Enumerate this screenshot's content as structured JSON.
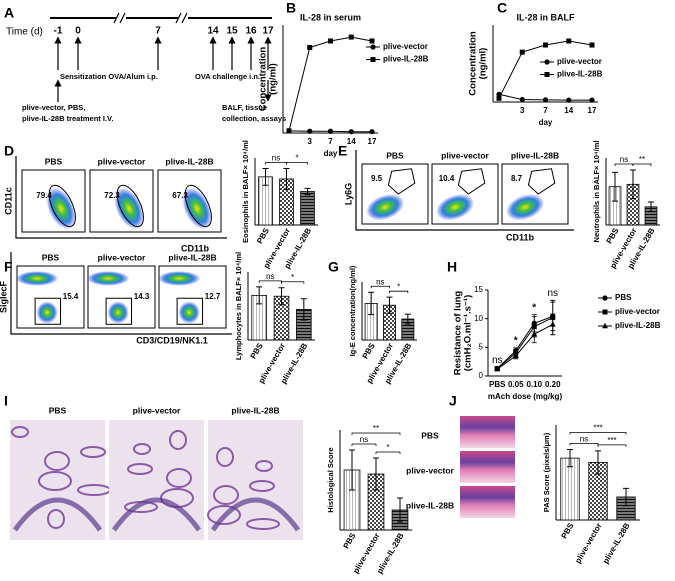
{
  "panel_letters": [
    "A",
    "B",
    "C",
    "D",
    "E",
    "F",
    "G",
    "H",
    "I",
    "J"
  ],
  "timeline": {
    "axis_label": "Time (d)",
    "days": [
      -1,
      0,
      7,
      14,
      15,
      16,
      17
    ],
    "notes": [
      "Sensitization OVA/Alum i.p.",
      "OVA challenge i.n.",
      "plive-vector, PBS,",
      "plive-IL-28B treatment I.V.",
      "BALF, tissue",
      "collection, assays"
    ]
  },
  "flow": [
    {
      "x_label": "CD11b",
      "y_label": "CD11c",
      "plots": [
        {
          "title": "PBS",
          "gate": 79.4
        },
        {
          "title": "plive-vector",
          "gate": 72.3
        },
        {
          "title": "plive-IL-28B",
          "gate": 67.3
        }
      ]
    },
    {
      "x_label": "CD11b",
      "y_label": "Ly6G",
      "plots": [
        {
          "title": "PBS",
          "gate": 9.5
        },
        {
          "title": "plive-vector",
          "gate": 10.4
        },
        {
          "title": "plive-IL-28B",
          "gate": 8.7
        }
      ]
    },
    {
      "x_label": "CD3/CD19/NK1.1",
      "y_label": "SiglecF",
      "plots": [
        {
          "title": "PBS",
          "gate": 15.4
        },
        {
          "title": "plive-vector",
          "gate": 14.3
        },
        {
          "title": "plive-IL-28B",
          "gate": 12.7
        }
      ]
    }
  ],
  "histology": {
    "titles": [
      "PBS",
      "plive-vector",
      "plive-IL-28B"
    ]
  },
  "pas": {
    "titles": [
      "PBS",
      "plive-vector",
      "plive-IL-28B"
    ]
  },
  "chart_data": [
    {
      "type": "line",
      "title": "IL-28 in serum",
      "ylabel": [
        "Concentration",
        "(ng/ml)"
      ],
      "xlabel": "day",
      "categories": [
        null,
        "3",
        "7",
        "14",
        "17"
      ],
      "ylim": [
        0,
        25
      ],
      "series": [
        {
          "name": "plive-vector",
          "color": "#000000",
          "marker": "circle",
          "values": [
            0.5,
            0.4,
            0.4,
            0.3,
            0.3
          ]
        },
        {
          "name": "plive-IL-28B",
          "color": "#000000",
          "marker": "square",
          "values": [
            0.5,
            19.8,
            21.3,
            22.2,
            21.3
          ]
        }
      ]
    },
    {
      "type": "line",
      "title": "IL-28 in BALF",
      "ylabel": [
        "Concentration",
        "(ng/ml)"
      ],
      "xlabel": "day",
      "categories": [
        null,
        "3",
        "7",
        "14",
        "17"
      ],
      "ylim": [
        0,
        25
      ],
      "series": [
        {
          "name": "plive-vector",
          "color": "#000000",
          "marker": "circle",
          "values": [
            2.5,
            0.8,
            0.7,
            0.6,
            0.6
          ]
        },
        {
          "name": "plive-IL-28B",
          "color": "#000000",
          "marker": "square",
          "values": [
            1.2,
            16.2,
            18.5,
            19.8,
            18.5
          ]
        }
      ]
    },
    {
      "type": "bar",
      "ylabel": "Eosinophils in BALF× 10⁴/ml",
      "categories": [
        "PBS",
        "plive-vector",
        "plive-IL-28B"
      ],
      "values": [
        23,
        22,
        16
      ],
      "errors": [
        4,
        5,
        1.5
      ],
      "ylim": [
        0,
        32
      ],
      "significance": [
        "ns",
        "*"
      ]
    },
    {
      "type": "bar",
      "ylabel": "Neutrophils in BALF× 10⁴/ml",
      "categories": [
        "PBS",
        "plive-vector",
        "plive-IL-28B"
      ],
      "values": [
        8,
        8.5,
        3.8
      ],
      "errors": [
        3,
        3,
        1
      ],
      "ylim": [
        0,
        14
      ],
      "significance": [
        "ns",
        "**"
      ]
    },
    {
      "type": "bar",
      "ylabel": "Lymphocytes in BALF× 10⁴/ml",
      "categories": [
        "PBS",
        "plive-vector",
        "plive-IL-28B"
      ],
      "values": [
        10.5,
        10.3,
        7.2
      ],
      "errors": [
        2,
        2,
        2.5
      ],
      "ylim": [
        0,
        16
      ],
      "significance": [
        "ns",
        "*"
      ]
    },
    {
      "type": "bar",
      "ylabel": "Ig-E concentration(ng/ml)",
      "categories": [
        "PBS",
        "plive-vector",
        "plive-IL-28B"
      ],
      "values": [
        820,
        780,
        470
      ],
      "errors": [
        250,
        180,
        110
      ],
      "ylim": [
        0,
        1300
      ],
      "significance": [
        "ns",
        "*"
      ]
    },
    {
      "type": "line",
      "ylabel": [
        "Resistance of lung",
        "(cmH₂O.ml⁻¹.s⁻¹)"
      ],
      "xlabel": "mAch dose (mg/kg)",
      "categories": [
        "PBS",
        "0.05",
        "0.10",
        "0.20"
      ],
      "ylim": [
        0,
        15
      ],
      "yticks": [
        0,
        5,
        10,
        15
      ],
      "annotations": [
        "ns",
        "*",
        "*",
        "ns"
      ],
      "series": [
        {
          "name": "PBS",
          "color": "#000000",
          "marker": "circle",
          "values": [
            1.3,
            4.4,
            9.2,
            10.4
          ],
          "errors": [
            0.2,
            0.5,
            1.5,
            2.5
          ]
        },
        {
          "name": "plive-vector",
          "color": "#000000",
          "marker": "square",
          "values": [
            1.3,
            4.0,
            8.6,
            10.2
          ],
          "errors": [
            0.2,
            0.6,
            1.8,
            3
          ]
        },
        {
          "name": "plive-IL-28B",
          "color": "#000000",
          "marker": "triangle",
          "values": [
            1.2,
            3.5,
            7.3,
            9.0
          ],
          "errors": [
            0.2,
            0.5,
            1.5,
            1.8
          ]
        }
      ]
    },
    {
      "type": "bar",
      "ylabel": "Histological Score",
      "categories": [
        "PBS",
        "plive-vector",
        "plive-IL-28B"
      ],
      "values": [
        3.0,
        2.8,
        1.0
      ],
      "errors": [
        1.0,
        0.8,
        0.6
      ],
      "ylim": [
        0,
        5
      ],
      "significance": [
        "ns",
        "*",
        "**"
      ]
    },
    {
      "type": "bar",
      "ylabel": "PAS Score (pixels/μm)",
      "categories": [
        "PBS",
        "plive-vector",
        "plive-IL-28B"
      ],
      "values": [
        215,
        200,
        80
      ],
      "errors": [
        30,
        40,
        30
      ],
      "ylim": [
        0,
        330
      ],
      "significance": [
        "ns",
        "***",
        "***"
      ]
    }
  ]
}
